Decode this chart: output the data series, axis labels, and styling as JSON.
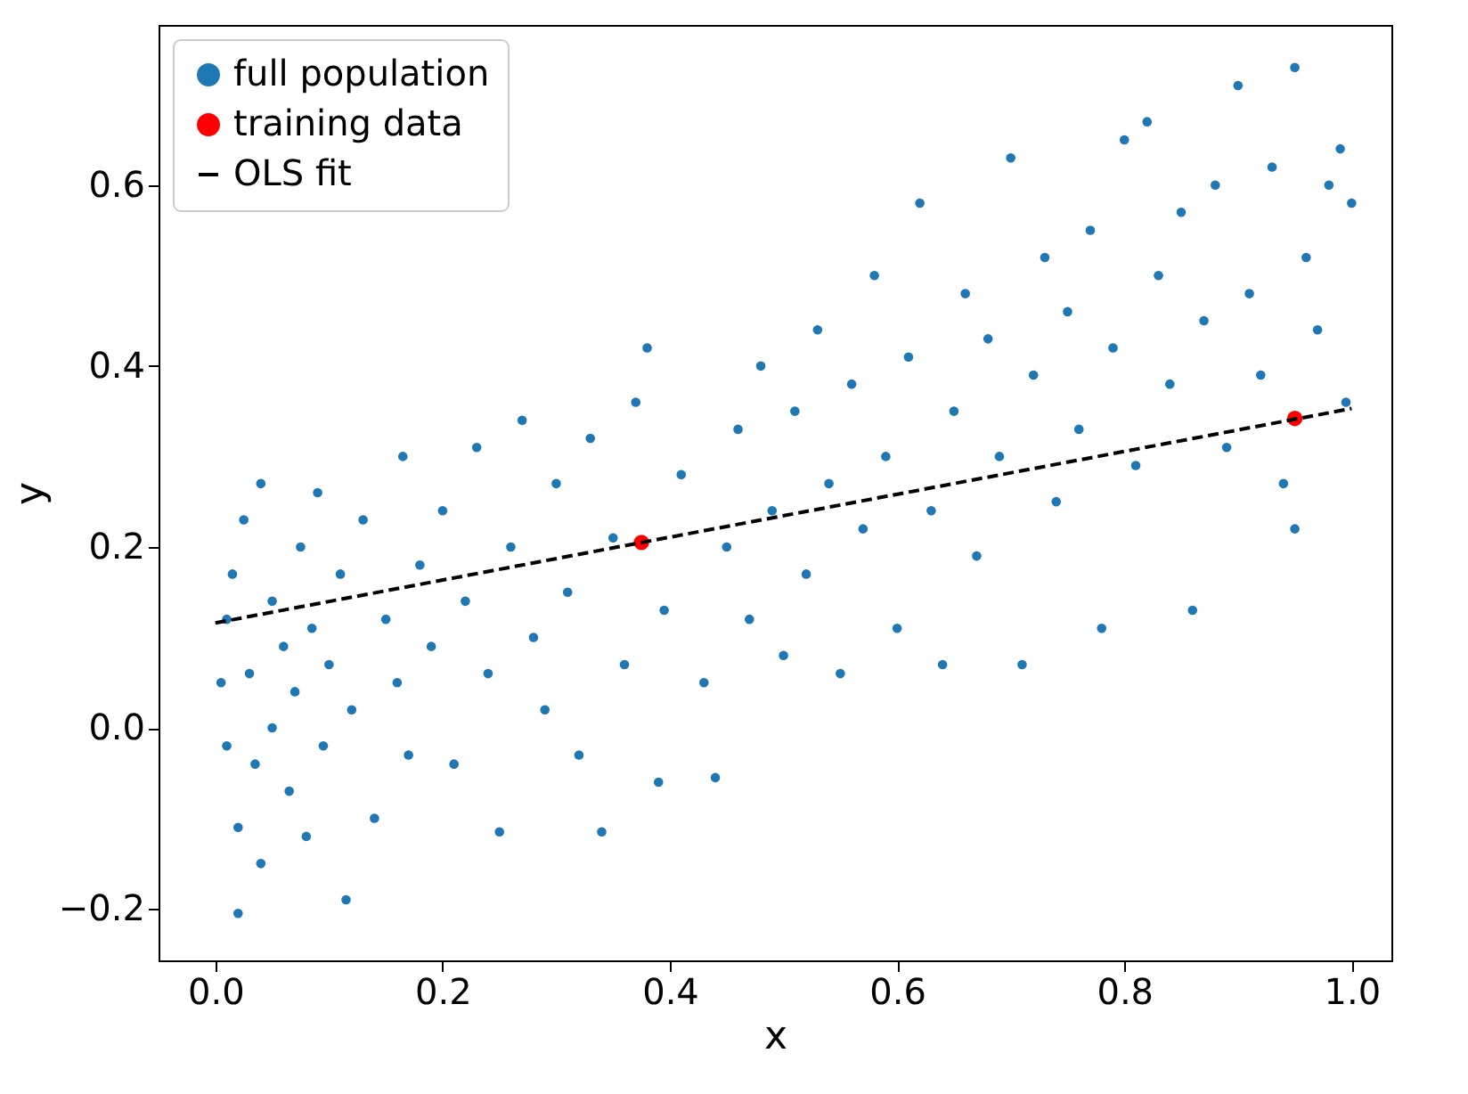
{
  "chart_data": {
    "type": "scatter",
    "xlabel": "x",
    "ylabel": "y",
    "xlim": [
      -0.05,
      1.035
    ],
    "ylim": [
      -0.257,
      0.777
    ],
    "xticks": [
      {
        "value": 0,
        "label": "0.0"
      },
      0.2,
      0.4,
      0.6,
      0.8,
      {
        "value": 1,
        "label": "1.0"
      }
    ],
    "yticks": [
      {
        "value": -0.2,
        "label": "−0.2"
      },
      {
        "value": 0,
        "label": "0.0"
      },
      0.2,
      0.4,
      0.6
    ],
    "grid": false,
    "legend": "top left",
    "marker": "circle",
    "series": [
      {
        "name": "full population",
        "color": "#1f77b4",
        "x": [
          0.005,
          0.01,
          0.01,
          0.015,
          0.02,
          0.02,
          0.025,
          0.03,
          0.035,
          0.04,
          0.04,
          0.05,
          0.05,
          0.06,
          0.065,
          0.07,
          0.075,
          0.08,
          0.085,
          0.09,
          0.095,
          0.1,
          0.11,
          0.115,
          0.12,
          0.13,
          0.14,
          0.15,
          0.16,
          0.165,
          0.17,
          0.18,
          0.19,
          0.2,
          0.21,
          0.22,
          0.23,
          0.24,
          0.25,
          0.26,
          0.27,
          0.28,
          0.29,
          0.3,
          0.31,
          0.32,
          0.33,
          0.34,
          0.35,
          0.36,
          0.37,
          0.38,
          0.39,
          0.395,
          0.41,
          0.43,
          0.44,
          0.45,
          0.46,
          0.47,
          0.48,
          0.49,
          0.5,
          0.51,
          0.52,
          0.53,
          0.54,
          0.55,
          0.56,
          0.57,
          0.58,
          0.59,
          0.6,
          0.61,
          0.62,
          0.63,
          0.64,
          0.65,
          0.66,
          0.67,
          0.68,
          0.69,
          0.7,
          0.71,
          0.72,
          0.73,
          0.74,
          0.75,
          0.76,
          0.77,
          0.78,
          0.79,
          0.8,
          0.81,
          0.82,
          0.83,
          0.84,
          0.85,
          0.86,
          0.87,
          0.88,
          0.89,
          0.9,
          0.91,
          0.92,
          0.93,
          0.94,
          0.95,
          0.95,
          0.96,
          0.97,
          0.98,
          0.99,
          0.995,
          1.0
        ],
        "values": [
          0.05,
          -0.02,
          0.12,
          0.17,
          -0.11,
          -0.205,
          0.23,
          0.06,
          -0.04,
          0.27,
          -0.15,
          0.14,
          0.0,
          0.09,
          -0.07,
          0.04,
          0.2,
          -0.12,
          0.11,
          0.26,
          -0.02,
          0.07,
          0.17,
          -0.19,
          0.02,
          0.23,
          -0.1,
          0.12,
          0.05,
          0.3,
          -0.03,
          0.18,
          0.09,
          0.24,
          -0.04,
          0.14,
          0.31,
          0.06,
          -0.115,
          0.2,
          0.34,
          0.1,
          0.02,
          0.27,
          0.15,
          -0.03,
          0.32,
          -0.115,
          0.21,
          0.07,
          0.36,
          0.42,
          -0.06,
          0.13,
          0.28,
          0.05,
          -0.055,
          0.2,
          0.33,
          0.12,
          0.4,
          0.24,
          0.08,
          0.35,
          0.17,
          0.44,
          0.27,
          0.06,
          0.38,
          0.22,
          0.5,
          0.3,
          0.11,
          0.41,
          0.58,
          0.24,
          0.07,
          0.35,
          0.48,
          0.19,
          0.43,
          0.3,
          0.63,
          0.07,
          0.39,
          0.52,
          0.25,
          0.46,
          0.33,
          0.55,
          0.11,
          0.42,
          0.65,
          0.29,
          0.67,
          0.5,
          0.38,
          0.57,
          0.13,
          0.45,
          0.6,
          0.31,
          0.71,
          0.48,
          0.39,
          0.62,
          0.27,
          0.73,
          0.22,
          0.52,
          0.44,
          0.6,
          0.64,
          0.36,
          0.58
        ]
      },
      {
        "name": "training data",
        "color": "#ff0000",
        "x": [
          0.375,
          0.95
        ],
        "values": [
          0.205,
          0.342
        ]
      },
      {
        "name": "OLS fit",
        "type": "line",
        "color": "#000000",
        "line_style": "dashed",
        "marker": "none",
        "x": [
          0,
          1
        ],
        "values": [
          0.116,
          0.353
        ]
      }
    ]
  }
}
